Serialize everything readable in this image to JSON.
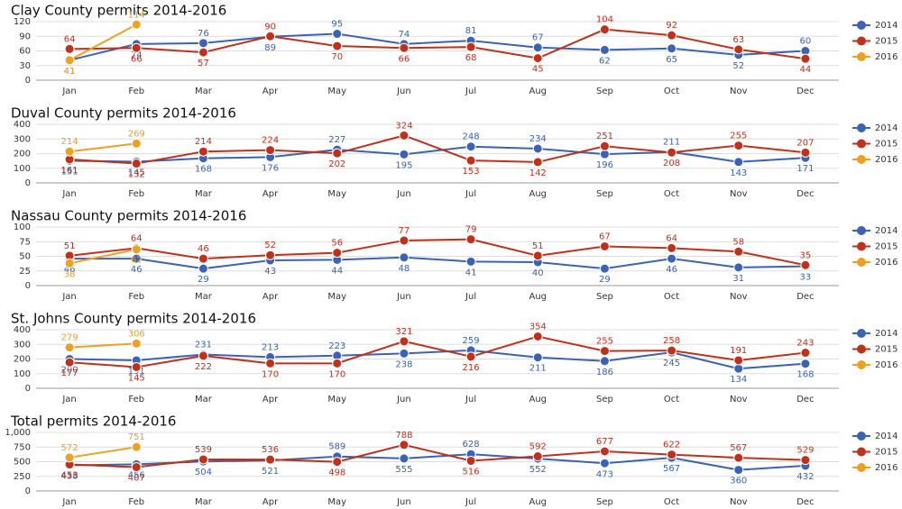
{
  "chart_data": [
    {
      "type": "line",
      "title": "Clay County permits 2014-2016",
      "categories": [
        "Jan",
        "Feb",
        "Mar",
        "Apr",
        "May",
        "Jun",
        "Jul",
        "Aug",
        "Sep",
        "Oct",
        "Nov",
        "Dec"
      ],
      "ylim": [
        0,
        120
      ],
      "yticks": [
        0,
        30,
        60,
        90,
        120
      ],
      "grid": true,
      "legend": "right",
      "series": [
        {
          "name": "2014",
          "color": "#3a62b5",
          "values": [
            41,
            74,
            76,
            89,
            95,
            74,
            81,
            67,
            62,
            65,
            52,
            60
          ]
        },
        {
          "name": "2015",
          "color": "#c0301a",
          "values": [
            64,
            66,
            57,
            90,
            70,
            66,
            68,
            45,
            104,
            92,
            63,
            44
          ]
        },
        {
          "name": "2016",
          "color": "#f0a020",
          "values": [
            41,
            114,
            null,
            null,
            null,
            null,
            null,
            null,
            null,
            null,
            null,
            null
          ]
        }
      ]
    },
    {
      "type": "line",
      "title": "Duval County permits 2014-2016",
      "categories": [
        "Jan",
        "Feb",
        "Mar",
        "Apr",
        "May",
        "Jun",
        "Jul",
        "Aug",
        "Sep",
        "Oct",
        "Nov",
        "Dec"
      ],
      "ylim": [
        0,
        400
      ],
      "yticks": [
        0,
        100,
        200,
        300,
        400
      ],
      "grid": true,
      "legend": "right",
      "series": [
        {
          "name": "2014",
          "color": "#3a62b5",
          "values": [
            151,
            145,
            168,
            176,
            227,
            195,
            248,
            234,
            196,
            211,
            143,
            171
          ]
        },
        {
          "name": "2015",
          "color": "#c0301a",
          "values": [
            161,
            132,
            214,
            224,
            202,
            324,
            153,
            142,
            251,
            208,
            255,
            207
          ]
        },
        {
          "name": "2016",
          "color": "#f0a020",
          "values": [
            214,
            269,
            null,
            null,
            null,
            null,
            null,
            null,
            null,
            null,
            null,
            null
          ]
        }
      ]
    },
    {
      "type": "line",
      "title": "Nassau County permits 2014-2016",
      "categories": [
        "Jan",
        "Feb",
        "Mar",
        "Apr",
        "May",
        "Jun",
        "Jul",
        "Aug",
        "Sep",
        "Oct",
        "Nov",
        "Dec"
      ],
      "ylim": [
        0,
        100
      ],
      "yticks": [
        0,
        25,
        50,
        75,
        100
      ],
      "grid": true,
      "legend": "right",
      "series": [
        {
          "name": "2014",
          "color": "#3a62b5",
          "values": [
            46,
            46,
            29,
            43,
            44,
            48,
            41,
            40,
            29,
            46,
            31,
            33
          ]
        },
        {
          "name": "2015",
          "color": "#c0301a",
          "values": [
            51,
            64,
            46,
            52,
            56,
            77,
            79,
            51,
            67,
            64,
            58,
            35
          ]
        },
        {
          "name": "2016",
          "color": "#f0a020",
          "values": [
            38,
            62,
            null,
            null,
            null,
            null,
            null,
            null,
            null,
            null,
            null,
            null
          ]
        }
      ]
    },
    {
      "type": "line",
      "title": "St. Johns County permits 2014-2016",
      "categories": [
        "Jan",
        "Feb",
        "Mar",
        "Apr",
        "May",
        "Jun",
        "Jul",
        "Aug",
        "Sep",
        "Oct",
        "Nov",
        "Dec"
      ],
      "ylim": [
        0,
        400
      ],
      "yticks": [
        0,
        100,
        200,
        300,
        400
      ],
      "grid": true,
      "legend": "right",
      "series": [
        {
          "name": "2014",
          "color": "#3a62b5",
          "values": [
            200,
            191,
            231,
            213,
            223,
            238,
            259,
            211,
            186,
            245,
            134,
            168
          ]
        },
        {
          "name": "2015",
          "color": "#c0301a",
          "values": [
            177,
            145,
            222,
            170,
            170,
            321,
            216,
            354,
            255,
            258,
            191,
            243
          ]
        },
        {
          "name": "2016",
          "color": "#f0a020",
          "values": [
            279,
            306,
            null,
            null,
            null,
            null,
            null,
            null,
            null,
            null,
            null,
            null
          ]
        }
      ]
    },
    {
      "type": "line",
      "title": "Total permits 2014-2016",
      "categories": [
        "Jan",
        "Feb",
        "Mar",
        "Apr",
        "May",
        "Jun",
        "Jul",
        "Aug",
        "Sep",
        "Oct",
        "Nov",
        "Dec"
      ],
      "ylim": [
        0,
        1000
      ],
      "yticks": [
        0,
        250,
        500,
        750,
        {
          "value": 1000,
          "label": "1,000"
        }
      ],
      "grid": true,
      "legend": "right",
      "series": [
        {
          "name": "2014",
          "color": "#3a62b5",
          "values": [
            438,
            456,
            504,
            521,
            589,
            555,
            628,
            552,
            473,
            567,
            360,
            432
          ]
        },
        {
          "name": "2015",
          "color": "#c0301a",
          "values": [
            453,
            407,
            539,
            536,
            498,
            788,
            516,
            592,
            677,
            622,
            567,
            529
          ]
        },
        {
          "name": "2016",
          "color": "#f0a020",
          "values": [
            572,
            751,
            null,
            null,
            null,
            null,
            null,
            null,
            null,
            null,
            null,
            null
          ]
        }
      ]
    }
  ]
}
